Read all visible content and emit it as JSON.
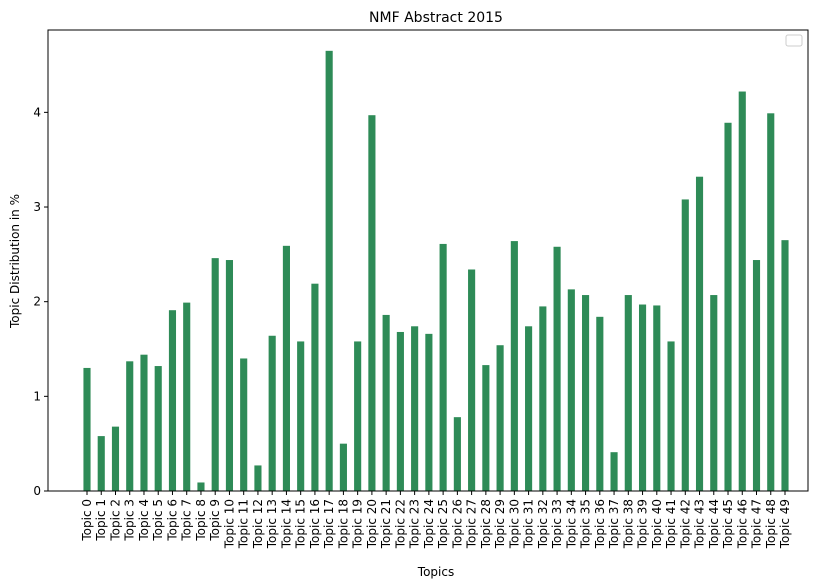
{
  "chart_data": {
    "type": "bar",
    "title": "NMF Abstract 2015",
    "xlabel": "Topics",
    "ylabel": "Topic Distribution in %",
    "ylim": [
      0,
      4.87
    ],
    "yticks": [
      "0",
      "1",
      "2",
      "3",
      "4"
    ],
    "bar_color": "#2e8b57",
    "legend": {
      "placement": "top-right",
      "entries": []
    },
    "grid": false,
    "categories": [
      "Topic 0",
      "Topic 1",
      "Topic 2",
      "Topic 3",
      "Topic 4",
      "Topic 5",
      "Topic 6",
      "Topic 7",
      "Topic 8",
      "Topic 9",
      "Topic 10",
      "Topic 11",
      "Topic 12",
      "Topic 13",
      "Topic 14",
      "Topic 15",
      "Topic 16",
      "Topic 17",
      "Topic 18",
      "Topic 19",
      "Topic 20",
      "Topic 21",
      "Topic 22",
      "Topic 23",
      "Topic 24",
      "Topic 25",
      "Topic 26",
      "Topic 27",
      "Topic 28",
      "Topic 29",
      "Topic 30",
      "Topic 31",
      "Topic 32",
      "Topic 33",
      "Topic 34",
      "Topic 35",
      "Topic 36",
      "Topic 37",
      "Topic 38",
      "Topic 39",
      "Topic 40",
      "Topic 41",
      "Topic 42",
      "Topic 43",
      "Topic 44",
      "Topic 45",
      "Topic 46",
      "Topic 47",
      "Topic 48",
      "Topic 49"
    ],
    "values": [
      1.3,
      0.58,
      0.68,
      1.37,
      1.44,
      1.32,
      1.91,
      1.99,
      0.09,
      2.46,
      2.44,
      1.4,
      0.27,
      1.64,
      2.59,
      1.58,
      2.19,
      4.65,
      0.5,
      1.58,
      3.97,
      1.86,
      1.68,
      1.74,
      1.66,
      2.61,
      0.78,
      2.34,
      1.33,
      1.54,
      2.64,
      1.74,
      1.95,
      2.58,
      2.13,
      2.07,
      1.84,
      0.41,
      2.07,
      1.97,
      1.96,
      1.58,
      3.08,
      3.32,
      2.07,
      3.89,
      4.22,
      2.44,
      3.99,
      2.65
    ]
  }
}
